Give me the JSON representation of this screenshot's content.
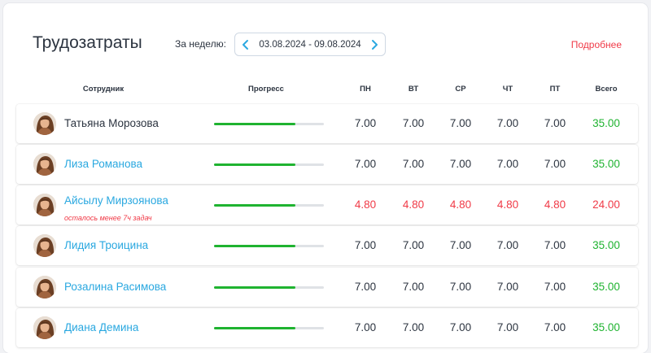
{
  "header": {
    "title": "Трудозатраты",
    "week_label": "За неделю:",
    "week_range": "03.08.2024 - 09.08.2024",
    "more_link": "Подробнее"
  },
  "table": {
    "columns": [
      "Сотрудник",
      "Прогресс",
      "ПН",
      "ВТ",
      "СР",
      "ЧТ",
      "ПТ",
      "Всего"
    ],
    "rows": [
      {
        "name": "Татьяна Морозова",
        "is_link": false,
        "progress": 0.74,
        "days": [
          "7.00",
          "7.00",
          "7.00",
          "7.00",
          "7.00"
        ],
        "total": "35.00",
        "status": "ok",
        "warning": ""
      },
      {
        "name": "Лиза Романова",
        "is_link": true,
        "progress": 0.74,
        "days": [
          "7.00",
          "7.00",
          "7.00",
          "7.00",
          "7.00"
        ],
        "total": "35.00",
        "status": "ok",
        "warning": ""
      },
      {
        "name": "Айсылу Мирзоянова",
        "is_link": true,
        "progress": 0.74,
        "days": [
          "4.80",
          "4.80",
          "4.80",
          "4.80",
          "4.80"
        ],
        "total": "24.00",
        "status": "low",
        "warning": "осталось менее 7ч задач"
      },
      {
        "name": "Лидия Троицина",
        "is_link": true,
        "progress": 0.74,
        "days": [
          "7.00",
          "7.00",
          "7.00",
          "7.00",
          "7.00"
        ],
        "total": "35.00",
        "status": "ok",
        "warning": ""
      },
      {
        "name": "Розалина Расимова",
        "is_link": true,
        "progress": 0.74,
        "days": [
          "7.00",
          "7.00",
          "7.00",
          "7.00",
          "7.00"
        ],
        "total": "35.00",
        "status": "ok",
        "warning": ""
      },
      {
        "name": "Диана Демина",
        "is_link": true,
        "progress": 0.74,
        "days": [
          "7.00",
          "7.00",
          "7.00",
          "7.00",
          "7.00"
        ],
        "total": "35.00",
        "status": "ok",
        "warning": ""
      }
    ]
  },
  "colors": {
    "accent_link": "#2aa8e0",
    "warning": "#f03a47",
    "ok": "#1fb330",
    "text": "#2c3440"
  },
  "icons": {
    "prev": "chevron-left-icon",
    "next": "chevron-right-icon",
    "avatar": "user-avatar"
  }
}
